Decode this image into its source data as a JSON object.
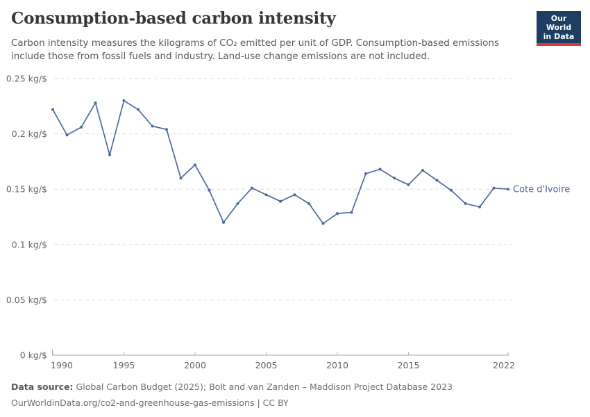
{
  "header": {
    "title": "Consumption-based carbon intensity",
    "subtitle_lines": [
      "Carbon intensity measures the kilograms of CO₂ emitted per unit of GDP. Consumption-based emissions",
      "include those from fossil fuels and industry. Land-use change emissions are not included."
    ]
  },
  "logo": {
    "line1": "Our World",
    "line2": "in Data",
    "bg_color": "#1d3d63",
    "bar_color": "#dc3a2f",
    "text_color": "#ffffff"
  },
  "chart_data": {
    "type": "line",
    "title": "Consumption-based carbon intensity",
    "entity_label": "Cote d'Ivoire",
    "unit": "kg/$",
    "xlim": [
      1990,
      2022
    ],
    "ylim": [
      0,
      0.25
    ],
    "grid": "dashed horizontal gridlines",
    "legend_position": "end-of-line label",
    "line_color": "#4c6a9c",
    "axis_color": "#a9a9a9",
    "grid_color": "#dedede",
    "tick_label_color": "#636363",
    "x": [
      1990,
      1991,
      1992,
      1993,
      1994,
      1995,
      1996,
      1997,
      1998,
      1999,
      2000,
      2001,
      2002,
      2003,
      2004,
      2005,
      2006,
      2007,
      2008,
      2009,
      2010,
      2011,
      2012,
      2013,
      2014,
      2015,
      2016,
      2017,
      2018,
      2019,
      2020,
      2021,
      2022
    ],
    "values": [
      0.222,
      0.199,
      0.206,
      0.228,
      0.181,
      0.23,
      0.222,
      0.207,
      0.204,
      0.16,
      0.172,
      0.149,
      0.12,
      0.137,
      0.151,
      0.145,
      0.139,
      0.145,
      0.137,
      0.119,
      0.128,
      0.129,
      0.164,
      0.168,
      0.16,
      0.154,
      0.167,
      0.158,
      0.149,
      0.137,
      0.134,
      0.151,
      0.15
    ],
    "x_ticks": [
      1990,
      1995,
      2000,
      2005,
      2010,
      2015,
      2022
    ],
    "y_ticks": {
      "values": [
        0,
        0.05,
        0.1,
        0.15,
        0.2,
        0.25
      ],
      "labels": [
        "0 kg/$",
        "0.05 kg/$",
        "0.1 kg/$",
        "0.15 kg/$",
        "0.2 kg/$",
        "0.25 kg/$"
      ]
    }
  },
  "footer": {
    "source_label": "Data source:",
    "source_text": " Global Carbon Budget (2025); Bolt and van Zanden – Maddison Project Database 2023",
    "link_text": "OurWorldinData.org/co2-and-greenhouse-gas-emissions | CC BY"
  }
}
